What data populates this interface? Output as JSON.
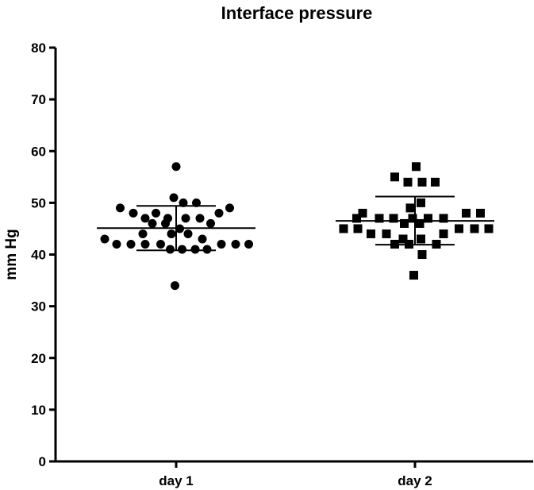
{
  "chart_data": {
    "type": "scatter",
    "title": "Interface pressure",
    "ylabel": "mm Hg",
    "xlabel": "",
    "ylim": [
      0,
      80
    ],
    "yticks": [
      0,
      10,
      20,
      30,
      40,
      50,
      60,
      70,
      80
    ],
    "grid": false,
    "categories": [
      "day 1",
      "day 2"
    ],
    "series": [
      {
        "marker": "circle",
        "color": "#000000",
        "mean": 45.1,
        "sd_upper": 49.4,
        "sd_lower": 40.8,
        "points": [
          {
            "x": 0,
            "y": 57
          },
          {
            "x": -0.02,
            "y": 51
          },
          {
            "x": 0.06,
            "y": 50
          },
          {
            "x": 0.17,
            "y": 50
          },
          {
            "x": -0.47,
            "y": 49
          },
          {
            "x": 0.45,
            "y": 49
          },
          {
            "x": -0.36,
            "y": 48
          },
          {
            "x": -0.17,
            "y": 48
          },
          {
            "x": 0.36,
            "y": 48
          },
          {
            "x": -0.26,
            "y": 47
          },
          {
            "x": -0.07,
            "y": 47
          },
          {
            "x": 0.08,
            "y": 47
          },
          {
            "x": 0.2,
            "y": 47
          },
          {
            "x": -0.2,
            "y": 46
          },
          {
            "x": -0.09,
            "y": 46
          },
          {
            "x": 0.29,
            "y": 46
          },
          {
            "x": 0.03,
            "y": 45
          },
          {
            "x": -0.28,
            "y": 44
          },
          {
            "x": -0.04,
            "y": 44
          },
          {
            "x": 0.1,
            "y": 44
          },
          {
            "x": -0.6,
            "y": 43
          },
          {
            "x": 0.22,
            "y": 43
          },
          {
            "x": -0.5,
            "y": 42
          },
          {
            "x": -0.38,
            "y": 42
          },
          {
            "x": -0.26,
            "y": 42
          },
          {
            "x": -0.13,
            "y": 42
          },
          {
            "x": 0.38,
            "y": 42
          },
          {
            "x": 0.5,
            "y": 42
          },
          {
            "x": 0.61,
            "y": 42
          },
          {
            "x": -0.05,
            "y": 41
          },
          {
            "x": 0.05,
            "y": 41
          },
          {
            "x": 0.16,
            "y": 41
          },
          {
            "x": 0.26,
            "y": 41
          },
          {
            "x": -0.01,
            "y": 34
          }
        ]
      },
      {
        "marker": "square",
        "color": "#000000",
        "mean": 46.5,
        "sd_upper": 51.2,
        "sd_lower": 41.9,
        "points": [
          {
            "x": 0.01,
            "y": 57
          },
          {
            "x": -0.17,
            "y": 55
          },
          {
            "x": -0.06,
            "y": 54
          },
          {
            "x": 0.06,
            "y": 54
          },
          {
            "x": 0.17,
            "y": 54
          },
          {
            "x": 0.05,
            "y": 50
          },
          {
            "x": -0.04,
            "y": 49
          },
          {
            "x": -0.44,
            "y": 48
          },
          {
            "x": 0.43,
            "y": 48
          },
          {
            "x": 0.55,
            "y": 48
          },
          {
            "x": -0.49,
            "y": 47
          },
          {
            "x": -0.3,
            "y": 47
          },
          {
            "x": -0.18,
            "y": 47
          },
          {
            "x": -0.02,
            "y": 47
          },
          {
            "x": 0.11,
            "y": 47
          },
          {
            "x": 0.24,
            "y": 47
          },
          {
            "x": 0.04,
            "y": 46
          },
          {
            "x": -0.09,
            "y": 46
          },
          {
            "x": -0.6,
            "y": 45
          },
          {
            "x": -0.48,
            "y": 45
          },
          {
            "x": 0.37,
            "y": 45
          },
          {
            "x": 0.5,
            "y": 45
          },
          {
            "x": 0.62,
            "y": 45
          },
          {
            "x": -0.37,
            "y": 44
          },
          {
            "x": -0.24,
            "y": 44
          },
          {
            "x": 0.24,
            "y": 44
          },
          {
            "x": -0.1,
            "y": 43
          },
          {
            "x": 0.05,
            "y": 43
          },
          {
            "x": -0.17,
            "y": 42
          },
          {
            "x": -0.05,
            "y": 42
          },
          {
            "x": 0.18,
            "y": 42
          },
          {
            "x": 0.06,
            "y": 40
          },
          {
            "x": -0.01,
            "y": 36
          }
        ]
      }
    ]
  }
}
